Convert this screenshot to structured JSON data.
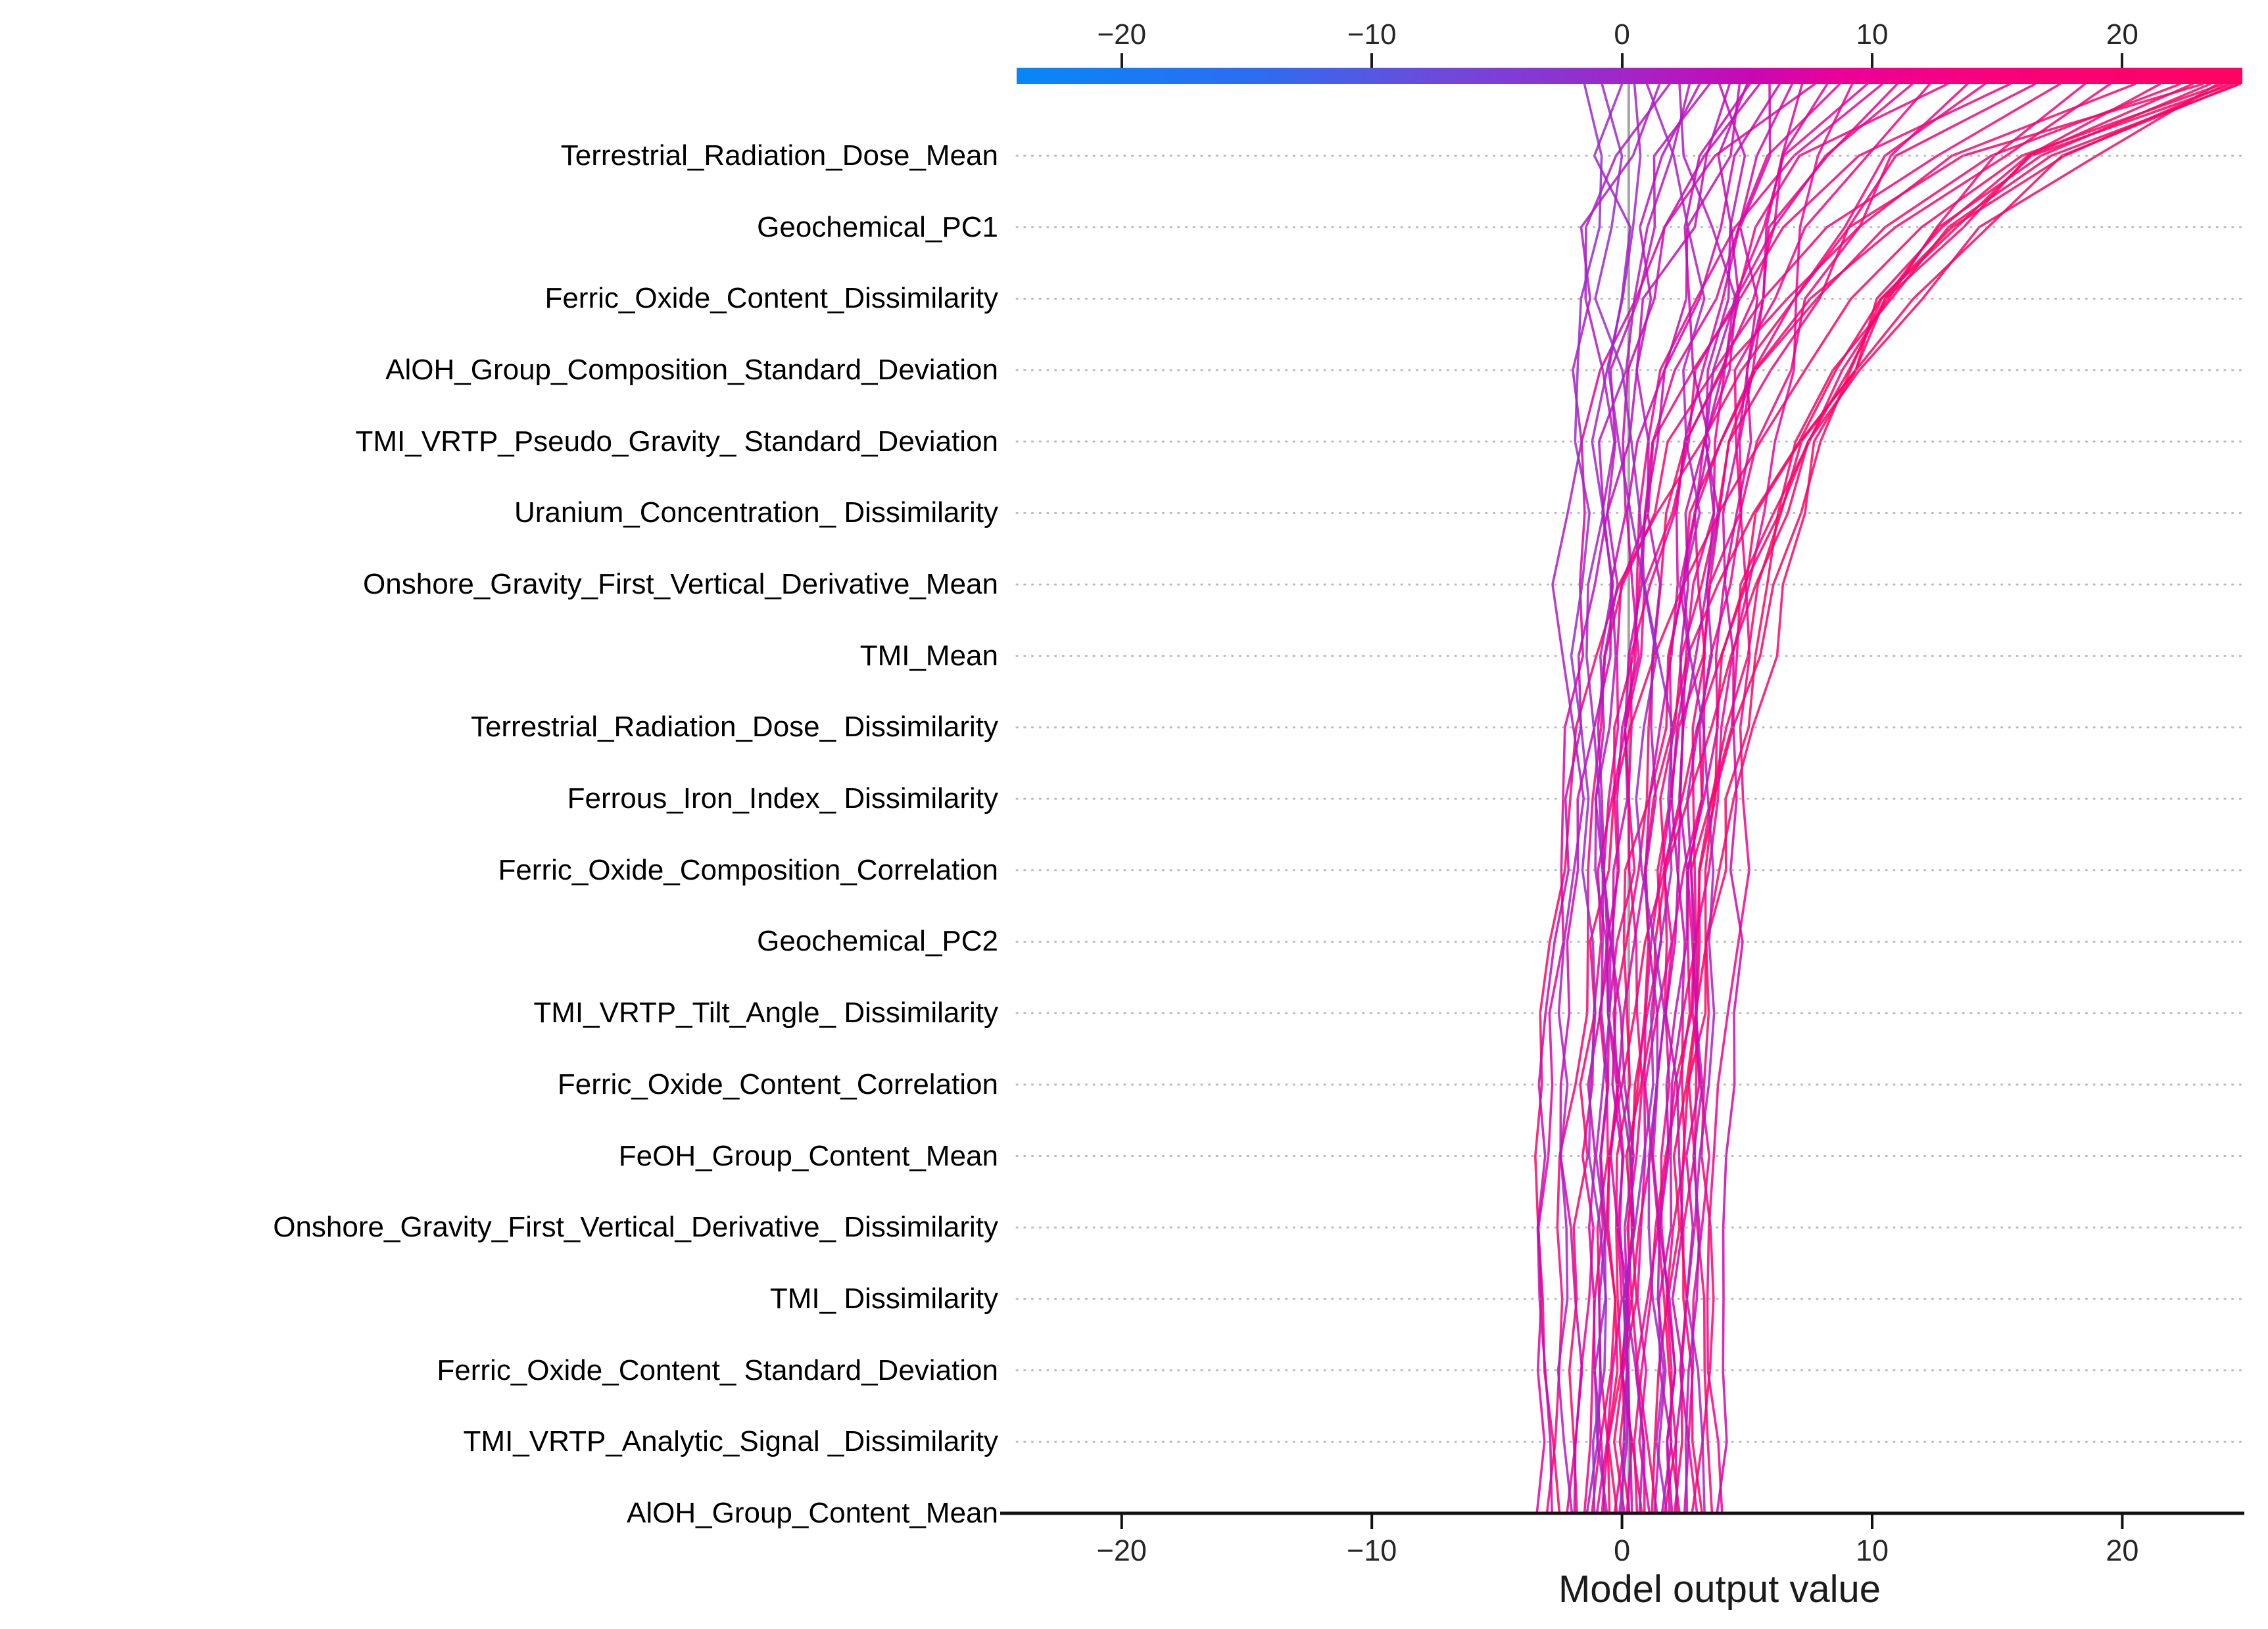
{
  "chart_data": {
    "type": "line",
    "subtype": "shap-decision-plot",
    "title": "",
    "xlabel": "Model output value",
    "xlim": [
      -24.2,
      24.8
    ],
    "base_value": 0.27,
    "grid": "dotted-horizontal-per-feature",
    "axis_ticks": {
      "top_values": [
        -20,
        -10,
        0,
        10,
        20
      ],
      "top_labels": [
        "−20",
        "−10",
        "0",
        "10",
        "20"
      ],
      "bottom_values": [
        -20,
        -10,
        0,
        10,
        20
      ],
      "bottom_labels": [
        "−20",
        "−10",
        "0",
        "10",
        "20"
      ]
    },
    "features_top_to_bottom": [
      "Terrestrial_Radiation_Dose_Mean",
      "Geochemical_PC1",
      "Ferric_Oxide_Content_Dissimilarity",
      "AlOH_Group_Composition_Standard_Deviation",
      "TMI_VRTP_Pseudo_Gravity_ Standard_Deviation",
      "Uranium_Concentration_ Dissimilarity",
      "Onshore_Gravity_First_Vertical_Derivative_Mean",
      "TMI_Mean",
      "Terrestrial_Radiation_Dose_ Dissimilarity",
      "Ferrous_Iron_Index_ Dissimilarity",
      "Ferric_Oxide_Composition_Correlation",
      "Geochemical_PC2",
      "TMI_VRTP_Tilt_Angle_ Dissimilarity",
      "Ferric_Oxide_Content_Correlation",
      "FeOH_Group_Content_Mean",
      "Onshore_Gravity_First_Vertical_Derivative_ Dissimilarity",
      "TMI_ Dissimilarity",
      "Ferric_Oxide_Content_ Standard_Deviation",
      "TMI_VRTP_Analytic_Signal _Dissimilarity",
      "AlOH_Group_Content_Mean"
    ],
    "colorbar": {
      "orientation": "horizontal",
      "stops": [
        {
          "f": 0.0,
          "c": "#0787f7"
        },
        {
          "f": 0.2,
          "c": "#2e6cf0"
        },
        {
          "f": 0.34,
          "c": "#6c4bdb"
        },
        {
          "f": 0.45,
          "c": "#8e32cf"
        },
        {
          "f": 0.5,
          "c": "#a424c7"
        },
        {
          "f": 0.6,
          "c": "#c908b3"
        },
        {
          "f": 0.675,
          "c": "#ec0197"
        },
        {
          "f": 0.8,
          "c": "#f8017b"
        },
        {
          "f": 1.0,
          "c": "#fc0461"
        }
      ]
    },
    "base_line_color": "#a3a3a3",
    "gridline_color": "#8e8e8e",
    "n_samples": 50,
    "increment_weights_bottom_to_top": [
      0.002,
      0.003,
      0.004,
      0.005,
      0.006,
      0.008,
      0.01,
      0.012,
      0.015,
      0.02,
      0.02,
      0.025,
      0.03,
      0.04,
      0.05,
      0.07,
      0.09,
      0.12,
      0.17,
      0.3
    ],
    "jitter": {
      "base": 0.45,
      "scale": 5.0
    },
    "lines_start_end_seed": [
      [
        1.2,
        24.7,
        1
      ],
      [
        -0.5,
        24.6,
        2
      ],
      [
        2.1,
        24.4,
        3
      ],
      [
        0.3,
        24.2,
        4
      ],
      [
        -1.8,
        24.0,
        5
      ],
      [
        3.2,
        23.8,
        6
      ],
      [
        0.8,
        23.5,
        7
      ],
      [
        -2.5,
        23.2,
        8
      ],
      [
        1.7,
        22.8,
        9
      ],
      [
        -0.2,
        22.3,
        10
      ],
      [
        2.8,
        21.5,
        11
      ],
      [
        -1.2,
        20.5,
        12
      ],
      [
        0.1,
        19.5,
        13
      ],
      [
        3.6,
        18.5,
        14
      ],
      [
        -3.0,
        17.5,
        15
      ],
      [
        1.4,
        16.5,
        16
      ],
      [
        -0.8,
        15.5,
        17
      ],
      [
        2.3,
        14.5,
        18
      ],
      [
        0.6,
        13.8,
        19
      ],
      [
        -1.5,
        13.0,
        20
      ],
      [
        4.0,
        12.3,
        21
      ],
      [
        -0.3,
        11.6,
        22
      ],
      [
        1.9,
        11.0,
        23
      ],
      [
        -2.2,
        10.4,
        24
      ],
      [
        0.9,
        9.8,
        25
      ],
      [
        3.0,
        9.2,
        26
      ],
      [
        -1.0,
        8.7,
        27
      ],
      [
        1.1,
        8.2,
        28
      ],
      [
        -3.4,
        7.7,
        29
      ],
      [
        2.5,
        7.2,
        30
      ],
      [
        0.2,
        6.8,
        31
      ],
      [
        -0.7,
        6.3,
        32
      ],
      [
        3.8,
        5.9,
        33
      ],
      [
        -1.9,
        5.5,
        34
      ],
      [
        1.6,
        5.1,
        35
      ],
      [
        0.4,
        4.7,
        36
      ],
      [
        -2.8,
        4.3,
        37
      ],
      [
        2.0,
        3.9,
        38
      ],
      [
        -0.1,
        3.5,
        39
      ],
      [
        1.3,
        3.1,
        40
      ],
      [
        -1.4,
        2.7,
        41
      ],
      [
        2.6,
        2.3,
        42
      ],
      [
        0.7,
        1.9,
        43
      ],
      [
        -2.0,
        1.5,
        44
      ],
      [
        3.3,
        1.0,
        45
      ],
      [
        -0.6,
        0.5,
        46
      ],
      [
        1.8,
        0.0,
        47
      ],
      [
        0.0,
        -0.8,
        48
      ],
      [
        -1.1,
        -1.5,
        49
      ],
      [
        2.2,
        5.0,
        50
      ]
    ]
  }
}
